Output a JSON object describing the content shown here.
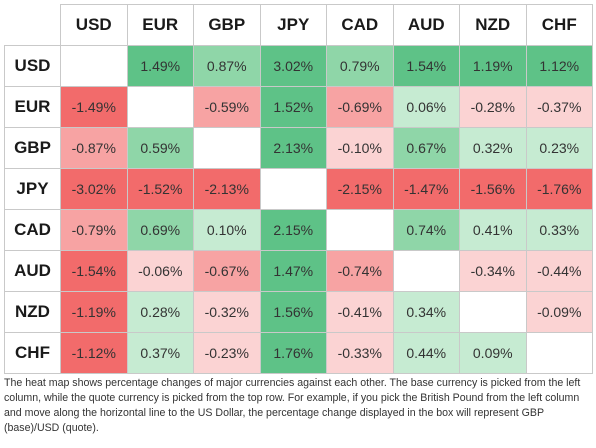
{
  "heatmap": {
    "currencies": [
      "USD",
      "EUR",
      "GBP",
      "JPY",
      "CAD",
      "AUD",
      "NZD",
      "CHF"
    ],
    "rows": [
      {
        "base": "USD",
        "values": [
          "",
          "1.49%",
          "0.87%",
          "3.02%",
          "0.79%",
          "1.54%",
          "1.19%",
          "1.12%"
        ]
      },
      {
        "base": "EUR",
        "values": [
          "-1.49%",
          "",
          "-0.59%",
          "1.52%",
          "-0.69%",
          "0.06%",
          "-0.28%",
          "-0.37%"
        ]
      },
      {
        "base": "GBP",
        "values": [
          "-0.87%",
          "0.59%",
          "",
          "2.13%",
          "-0.10%",
          "0.67%",
          "0.32%",
          "0.23%"
        ]
      },
      {
        "base": "JPY",
        "values": [
          "-3.02%",
          "-1.52%",
          "-2.13%",
          "",
          "-2.15%",
          "-1.47%",
          "-1.56%",
          "-1.76%"
        ]
      },
      {
        "base": "CAD",
        "values": [
          "-0.79%",
          "0.69%",
          "0.10%",
          "2.15%",
          "",
          "0.74%",
          "0.41%",
          "0.33%"
        ]
      },
      {
        "base": "AUD",
        "values": [
          "-1.54%",
          "-0.06%",
          "-0.67%",
          "1.47%",
          "-0.74%",
          "",
          "-0.34%",
          "-0.44%"
        ]
      },
      {
        "base": "NZD",
        "values": [
          "-1.19%",
          "0.28%",
          "-0.32%",
          "1.56%",
          "-0.41%",
          "0.34%",
          "",
          "-0.09%"
        ]
      },
      {
        "base": "CHF",
        "values": [
          "-1.12%",
          "0.37%",
          "-0.23%",
          "1.76%",
          "-0.33%",
          "0.44%",
          "0.09%",
          ""
        ]
      }
    ],
    "colors": {
      "strong_positive": "#5ec287",
      "medium_positive": "#8fd6a8",
      "light_positive": "#c6ebd2",
      "strong_negative": "#f26b6b",
      "medium_negative": "#f7a3a3",
      "light_negative": "#fbd3d3",
      "diagonal": "#ffffff"
    }
  },
  "caption": "The heat map shows percentage changes of major currencies against each other. The base currency is picked from the left column, while the quote currency is picked from the top row. For example, if you pick the British Pound from the left column and move along the horizontal line to the US Dollar, the percentage change displayed in the box will represent GBP (base)/USD (quote)."
}
